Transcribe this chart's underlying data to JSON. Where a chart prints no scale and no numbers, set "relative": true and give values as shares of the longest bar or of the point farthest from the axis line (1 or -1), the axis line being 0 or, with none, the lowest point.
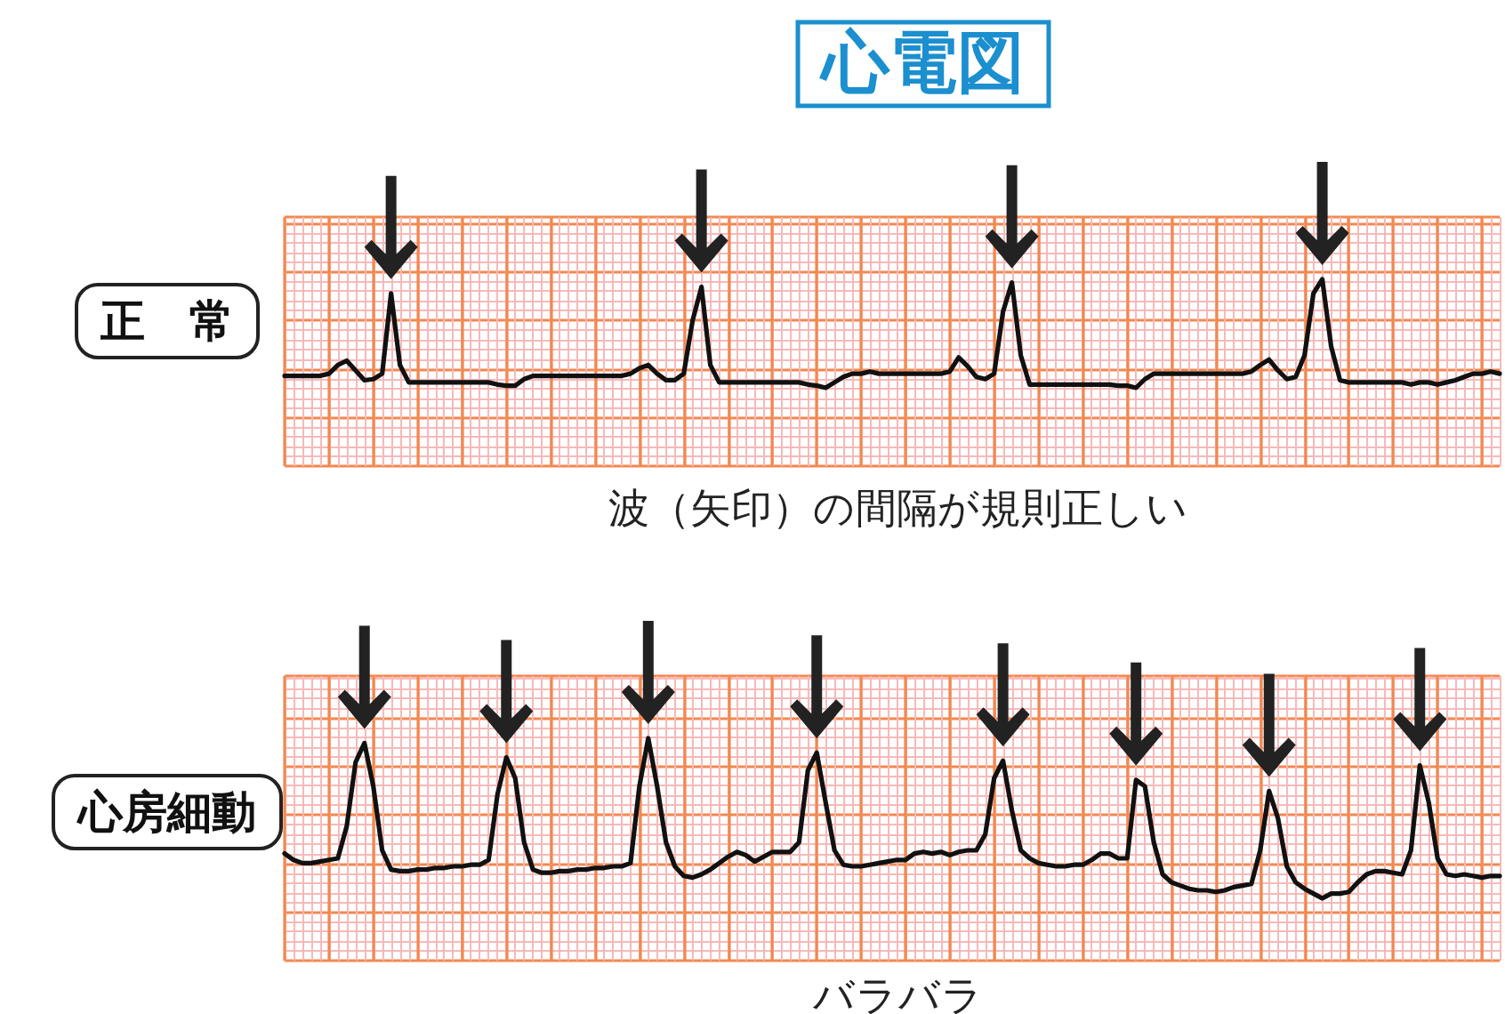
{
  "chart_data": [
    {
      "type": "line",
      "title": "心電図",
      "ylabel": "正　常",
      "annotations": [
        "波（矢印）の間隔が規則正しい"
      ],
      "relative": true,
      "grid": true,
      "marker": "none",
      "line_style": "solid",
      "categories": [
        null,
        null,
        null,
        null,
        null,
        null,
        null,
        null,
        null,
        null,
        null,
        null,
        null,
        null,
        null,
        null,
        null,
        null,
        null,
        null,
        null,
        null,
        null,
        null,
        null,
        null,
        null,
        null,
        null,
        null,
        null,
        null,
        null,
        null,
        null,
        null,
        null,
        null,
        null,
        null,
        null,
        null,
        null,
        null,
        null,
        null,
        null,
        null,
        null,
        null,
        null,
        null,
        null,
        null,
        null,
        null,
        null,
        null,
        null,
        null,
        null,
        null,
        null,
        null,
        null,
        null,
        null,
        null,
        null,
        null,
        null,
        null,
        null,
        null,
        null,
        null,
        null,
        null,
        null,
        null,
        null,
        null,
        null,
        null,
        null,
        null,
        null,
        null,
        null,
        null,
        null,
        null,
        null,
        null,
        null,
        null,
        null,
        null,
        null,
        null,
        null,
        null,
        null,
        null,
        null,
        null,
        null,
        null,
        null,
        null,
        null,
        null,
        null,
        null,
        null,
        null,
        null,
        null,
        null,
        null,
        null,
        null,
        null,
        null,
        null,
        null,
        null,
        null,
        null,
        null,
        null,
        null,
        null,
        null,
        null,
        null,
        null,
        null
      ],
      "series": [
        {
          "color": "#111111",
          "values": [
            0.11,
            0.11,
            0.11,
            0.11,
            0.11,
            0.13,
            0.21,
            0.25,
            0.16,
            0.07,
            0.08,
            0.13,
            0.87,
            0.21,
            0.05,
            0.05,
            0.05,
            0.05,
            0.05,
            0.05,
            0.05,
            0.05,
            0.05,
            0.05,
            0.03,
            0.02,
            0.02,
            0.08,
            0.11,
            0.11,
            0.11,
            0.11,
            0.11,
            0.11,
            0.11,
            0.11,
            0.11,
            0.11,
            0.11,
            0.13,
            0.18,
            0.21,
            0.13,
            0.07,
            0.07,
            0.13,
            0.62,
            0.93,
            0.21,
            0.05,
            0.05,
            0.05,
            0.05,
            0.05,
            0.05,
            0.05,
            0.05,
            0.05,
            0.05,
            0.03,
            0.02,
            0,
            0.05,
            0.1,
            0.13,
            0.13,
            0.15,
            0.13,
            0.13,
            0.13,
            0.13,
            0.13,
            0.13,
            0.13,
            0.13,
            0.15,
            0.28,
            0.2,
            0.1,
            0.08,
            0.13,
            0.7,
            0.97,
            0.3,
            0.03,
            0.03,
            0.03,
            0.03,
            0.03,
            0.03,
            0.03,
            0.03,
            0.03,
            0.03,
            0.02,
            0.02,
            0,
            0.08,
            0.13,
            0.13,
            0.13,
            0.13,
            0.13,
            0.13,
            0.13,
            0.13,
            0.13,
            0.13,
            0.13,
            0.15,
            0.21,
            0.26,
            0.16,
            0.08,
            0.1,
            0.3,
            0.87,
            1,
            0.38,
            0.07,
            0.05,
            0.05,
            0.05,
            0.05,
            0.05,
            0.05,
            0.05,
            0.03,
            0.05,
            0.05,
            0.03,
            0.05,
            0.07,
            0.1,
            0.13,
            0.13,
            0.15,
            0.13
          ]
        }
      ]
    },
    {
      "type": "line",
      "ylabel": "心房細動",
      "annotations": [
        "バラバラ"
      ],
      "relative": true,
      "grid": true,
      "marker": "none",
      "line_style": "solid",
      "categories": [
        null,
        null,
        null,
        null,
        null,
        null,
        null,
        null,
        null,
        null,
        null,
        null,
        null,
        null,
        null,
        null,
        null,
        null,
        null,
        null,
        null,
        null,
        null,
        null,
        null,
        null,
        null,
        null,
        null,
        null,
        null,
        null,
        null,
        null,
        null,
        null,
        null,
        null,
        null,
        null,
        null,
        null,
        null,
        null,
        null,
        null,
        null,
        null,
        null,
        null,
        null,
        null,
        null,
        null,
        null,
        null,
        null,
        null,
        null,
        null,
        null,
        null,
        null,
        null,
        null,
        null,
        null,
        null,
        null,
        null,
        null,
        null,
        null,
        null,
        null,
        null,
        null,
        null,
        null,
        null,
        null,
        null,
        null,
        null,
        null,
        null,
        null,
        null,
        null,
        null,
        null,
        null,
        null,
        null,
        null,
        null,
        null,
        null,
        null,
        null,
        null,
        null,
        null,
        null,
        null,
        null,
        null,
        null,
        null,
        null,
        null,
        null,
        null,
        null,
        null,
        null,
        null,
        null,
        null,
        null,
        null,
        null,
        null,
        null,
        null,
        null,
        null,
        null,
        null,
        null,
        null,
        null,
        null,
        null,
        null,
        null,
        null,
        null
      ],
      "series": [
        {
          "color": "#111111",
          "values": [
            0.28,
            0.24,
            0.22,
            0.22,
            0.23,
            0.24,
            0.25,
            0.45,
            0.85,
            0.97,
            0.7,
            0.3,
            0.18,
            0.17,
            0.17,
            0.18,
            0.18,
            0.19,
            0.19,
            0.2,
            0.2,
            0.21,
            0.21,
            0.24,
            0.65,
            0.88,
            0.75,
            0.35,
            0.18,
            0.16,
            0.16,
            0.17,
            0.17,
            0.18,
            0.18,
            0.19,
            0.19,
            0.2,
            0.2,
            0.22,
            0.7,
            1,
            0.7,
            0.35,
            0.2,
            0.14,
            0.13,
            0.15,
            0.18,
            0.22,
            0.26,
            0.29,
            0.27,
            0.23,
            0.26,
            0.29,
            0.29,
            0.29,
            0.35,
            0.8,
            0.91,
            0.6,
            0.3,
            0.21,
            0.2,
            0.2,
            0.21,
            0.22,
            0.23,
            0.24,
            0.24,
            0.28,
            0.29,
            0.28,
            0.29,
            0.27,
            0.29,
            0.3,
            0.3,
            0.4,
            0.75,
            0.86,
            0.55,
            0.3,
            0.25,
            0.22,
            0.21,
            0.2,
            0.2,
            0.21,
            0.21,
            0.24,
            0.28,
            0.28,
            0.25,
            0.25,
            0.74,
            0.7,
            0.35,
            0.15,
            0.1,
            0.08,
            0.06,
            0.05,
            0.05,
            0.04,
            0.05,
            0.07,
            0.08,
            0.09,
            0.3,
            0.67,
            0.5,
            0.2,
            0.1,
            0.06,
            0.03,
            0,
            0.03,
            0.03,
            0.04,
            0.1,
            0.15,
            0.17,
            0.17,
            0.16,
            0.15,
            0.3,
            0.83,
            0.6,
            0.25,
            0.15,
            0.14,
            0.15,
            0.14,
            0.13,
            0.14,
            0.14
          ]
        }
      ]
    }
  ]
}
